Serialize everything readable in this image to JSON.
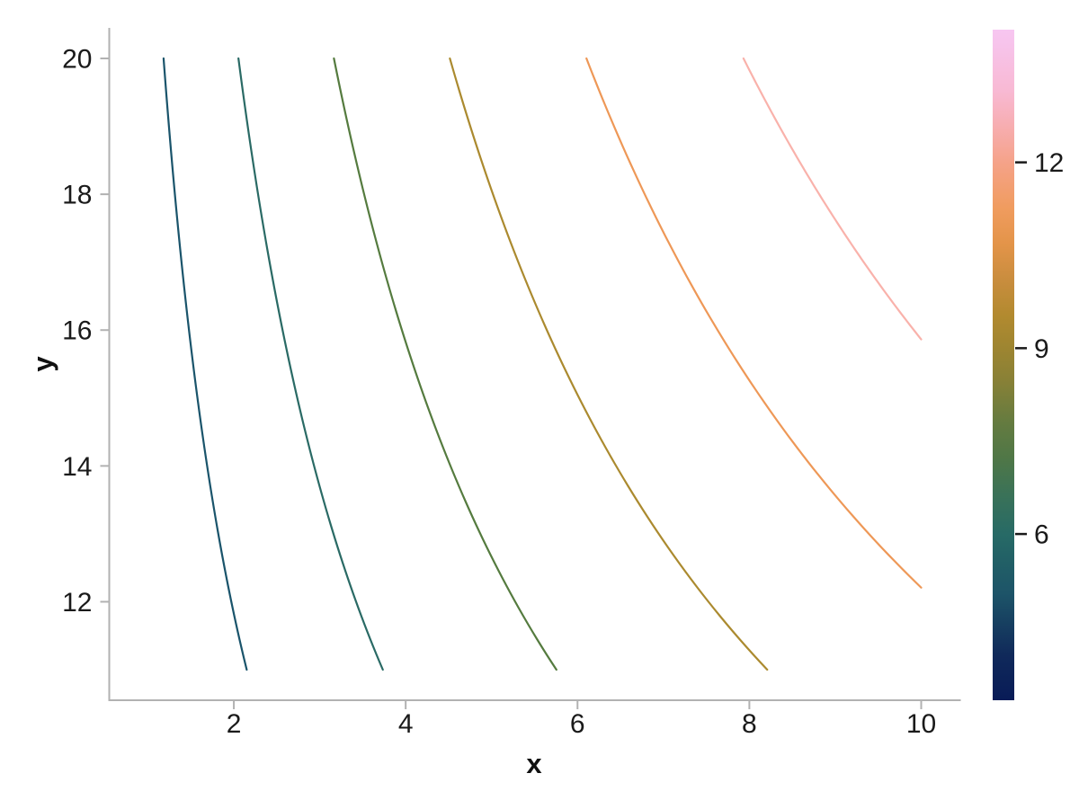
{
  "figure": {
    "background_color": "#ffffff",
    "spine_color": "#b2b2b2",
    "tick_color": "#b2b2b2",
    "text_color": "#1a1a1a"
  },
  "chart_data": {
    "type": "contour",
    "title": "",
    "xlabel": "x",
    "ylabel": "y",
    "xlim": [
      0.55,
      10.45
    ],
    "ylim": [
      10.55,
      20.45
    ],
    "x_domain": [
      1,
      10
    ],
    "y_domain": [
      11,
      20
    ],
    "xticks": [
      2,
      4,
      6,
      8,
      10
    ],
    "yticks": [
      12,
      14,
      16,
      18,
      20
    ],
    "grid": false,
    "level_curves_of": "z = sqrt(x*y)",
    "levels": [
      {
        "value": 4.863,
        "color": "#1a546b"
      },
      {
        "value": 6.409,
        "color": "#2a6a65"
      },
      {
        "value": 7.956,
        "color": "#557b3f"
      },
      {
        "value": 9.502,
        "color": "#ab8a2f"
      },
      {
        "value": 11.049,
        "color": "#ee9857"
      },
      {
        "value": 12.595,
        "color": "#f9b2ab"
      }
    ],
    "line_width": 2.2,
    "colorbar": {
      "range": [
        3.3166,
        14.1421
      ],
      "ticks": [
        6,
        9,
        12
      ],
      "colormap": "batlow",
      "legend_position": "right",
      "gradient_stops": [
        {
          "t": 0.0,
          "color": "#081b57"
        },
        {
          "t": 0.066,
          "color": "#10295a"
        },
        {
          "t": 0.119,
          "color": "#174161"
        },
        {
          "t": 0.159,
          "color": "#1d5468"
        },
        {
          "t": 0.213,
          "color": "#226166"
        },
        {
          "t": 0.247,
          "color": "#276a66"
        },
        {
          "t": 0.306,
          "color": "#3a7258"
        },
        {
          "t": 0.36,
          "color": "#4f7747"
        },
        {
          "t": 0.413,
          "color": "#647b40"
        },
        {
          "t": 0.48,
          "color": "#8a8136"
        },
        {
          "t": 0.524,
          "color": "#9d8531"
        },
        {
          "t": 0.574,
          "color": "#b28a2f"
        },
        {
          "t": 0.627,
          "color": "#c98d3e"
        },
        {
          "t": 0.68,
          "color": "#e39449"
        },
        {
          "t": 0.734,
          "color": "#f09c5f"
        },
        {
          "t": 0.799,
          "color": "#f5a287"
        },
        {
          "t": 0.854,
          "color": "#f7adaf"
        },
        {
          "t": 0.908,
          "color": "#f8b9d3"
        },
        {
          "t": 0.975,
          "color": "#f7c3ea"
        },
        {
          "t": 1.0,
          "color": "#f7c6f1"
        }
      ]
    }
  }
}
